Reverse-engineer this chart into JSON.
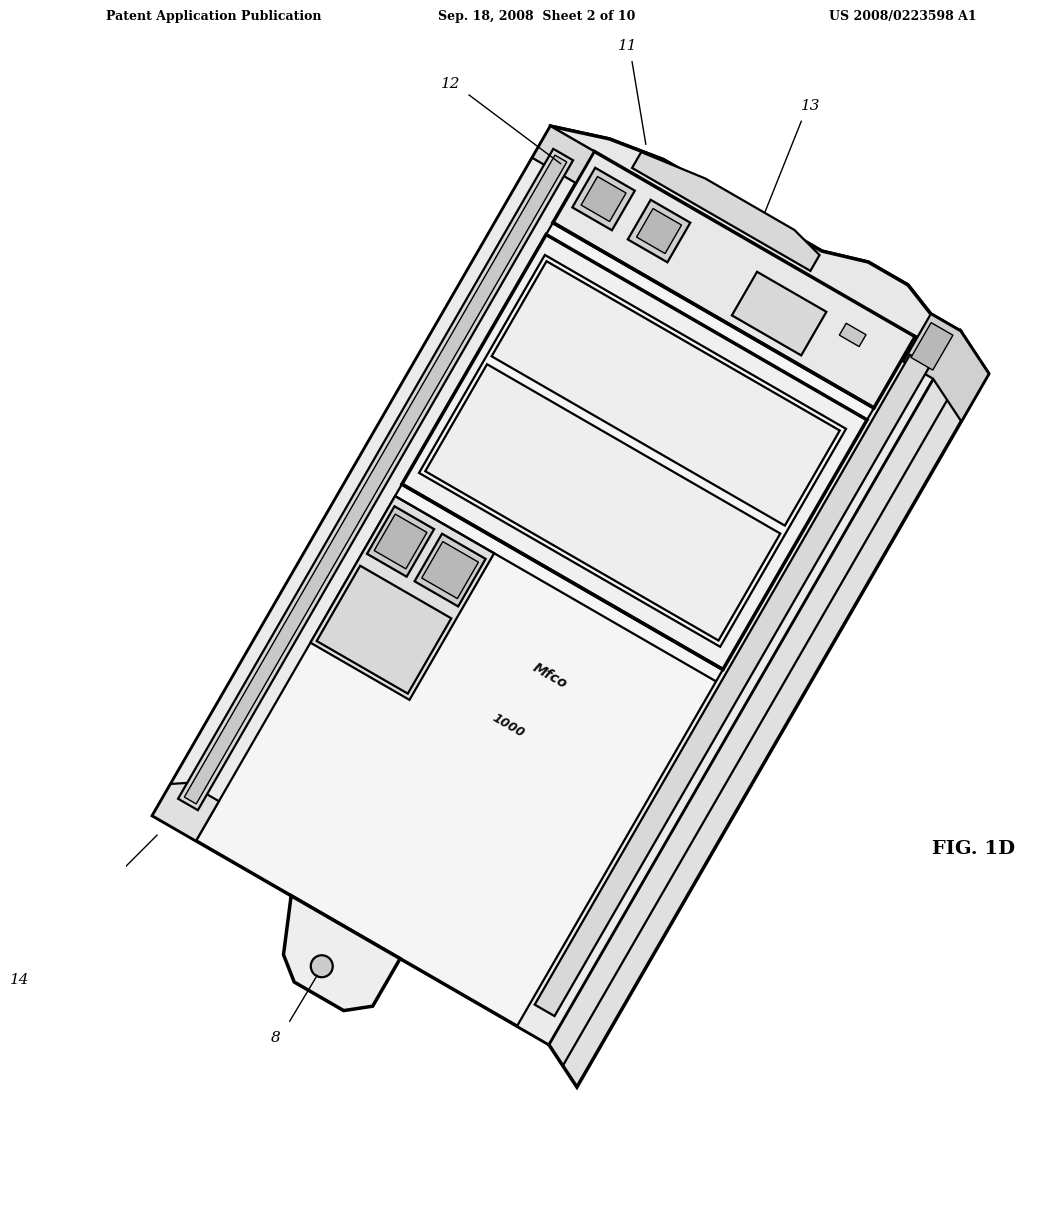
{
  "header_left": "Patent Application Publication",
  "header_mid": "Sep. 18, 2008  Sheet 2 of 10",
  "header_right": "US 2008/0223598 A1",
  "fig_label": "FIG. 1D",
  "bg_color": "#ffffff",
  "line_color": "#000000",
  "rotation_deg": -30,
  "lw_main": 2.5,
  "lw_detail": 1.6,
  "lw_thin": 1.0
}
